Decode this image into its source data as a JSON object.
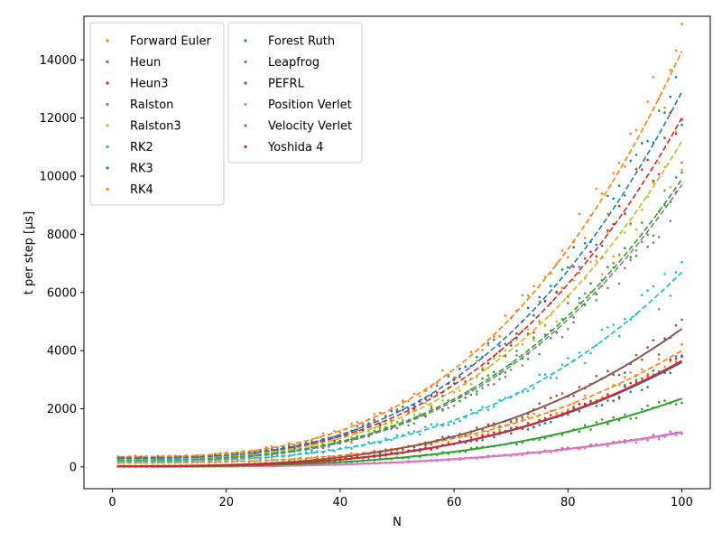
{
  "chart_data": {
    "type": "scatter",
    "title": "",
    "xlabel": "N",
    "ylabel": "t per step [μs]",
    "xlim": [
      -5,
      105
    ],
    "ylim": [
      -750,
      15500
    ],
    "x_ticks": [
      0,
      20,
      40,
      60,
      80,
      100
    ],
    "y_ticks": [
      0,
      2000,
      4000,
      6000,
      8000,
      10000,
      12000,
      14000
    ],
    "x": [
      1,
      100
    ],
    "fit_model": "cubic",
    "legend_placement": "top-left",
    "series": [
      {
        "name": "Forward Euler",
        "color": "#ff7f0e",
        "fit": [
          350,
          14300
        ],
        "line": "dashed"
      },
      {
        "name": "Heun",
        "color": "#2ca02c",
        "fit": [
          250,
          9900
        ],
        "line": "dashed"
      },
      {
        "name": "Heun3",
        "color": "#d62728",
        "fit": [
          300,
          12000
        ],
        "line": "dashed"
      },
      {
        "name": "Ralston",
        "color": "#7f7f7f",
        "fit": [
          220,
          9700
        ],
        "line": "dashed"
      },
      {
        "name": "Ralston3",
        "color": "#bcbd22",
        "fit": [
          280,
          11200
        ],
        "line": "dashed"
      },
      {
        "name": "RK2",
        "color": "#17becf",
        "fit": [
          200,
          6700
        ],
        "line": "dashed"
      },
      {
        "name": "RK3",
        "color": "#1f77b4",
        "fit": [
          300,
          12900
        ],
        "line": "dashed"
      },
      {
        "name": "RK4",
        "color": "#ff7f0e",
        "fit": [
          150,
          4000
        ],
        "line": "dashed"
      },
      {
        "name": "Forest Ruth",
        "color": "#1f77b4",
        "fit": [
          20,
          3600
        ],
        "line": "solid"
      },
      {
        "name": "Leapfrog",
        "color": "#9467bd",
        "fit": [
          10,
          1200
        ],
        "line": "solid"
      },
      {
        "name": "PEFRL",
        "color": "#8c564b",
        "fit": [
          30,
          4750
        ],
        "line": "solid"
      },
      {
        "name": "Position Verlet",
        "color": "#e377c2",
        "fit": [
          10,
          1180
        ],
        "line": "solid"
      },
      {
        "name": "Velocity Verlet",
        "color": "#2ca02c",
        "fit": [
          15,
          2350
        ],
        "line": "solid"
      },
      {
        "name": "Yoshida 4",
        "color": "#d62728",
        "fit": [
          20,
          3650
        ],
        "line": "solid"
      }
    ]
  }
}
